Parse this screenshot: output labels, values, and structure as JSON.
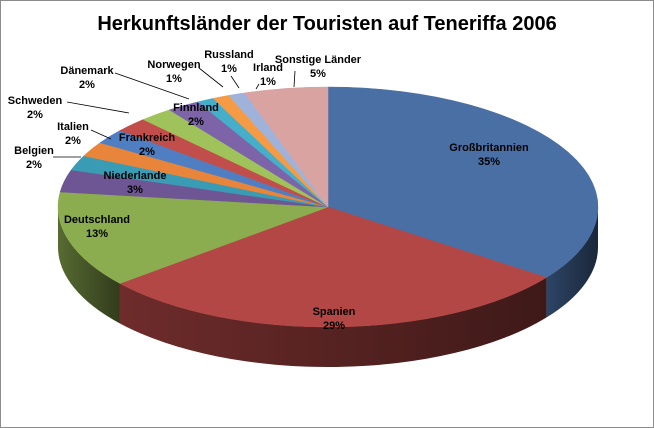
{
  "chart_data": {
    "type": "pie",
    "title": "Herkunftsländer der Touristen auf Teneriffa 2006",
    "slices": [
      {
        "label": "Großbritannien",
        "pct_label": "35%",
        "value": 35,
        "color": "#4a6fa5",
        "label_pos": "inside"
      },
      {
        "label": "Spanien",
        "pct_label": "29%",
        "value": 29,
        "color": "#b24745",
        "label_pos": "inside"
      },
      {
        "label": "Deutschland",
        "pct_label": "13%",
        "value": 13,
        "color": "#8cac50",
        "label_pos": "inside"
      },
      {
        "label": "Niederlande",
        "pct_label": "3%",
        "value": 3,
        "color": "#6e5594",
        "label_pos": "inside"
      },
      {
        "label": "Belgien",
        "pct_label": "2%",
        "value": 2,
        "color": "#3a9bb4",
        "label_pos": "outside"
      },
      {
        "label": "Frankreich",
        "pct_label": "2%",
        "value": 2,
        "color": "#e8853a",
        "label_pos": "inside"
      },
      {
        "label": "Italien",
        "pct_label": "2%",
        "value": 2,
        "color": "#4f7fc2",
        "label_pos": "outside"
      },
      {
        "label": "Schweden",
        "pct_label": "2%",
        "value": 2,
        "color": "#c24e4c",
        "label_pos": "outside"
      },
      {
        "label": "Finnland",
        "pct_label": "2%",
        "value": 2,
        "color": "#9fc35a",
        "label_pos": "inside"
      },
      {
        "label": "Dänemark",
        "pct_label": "2%",
        "value": 2,
        "color": "#7d64a8",
        "label_pos": "outside"
      },
      {
        "label": "Norwegen",
        "pct_label": "1%",
        "value": 1,
        "color": "#45aec8",
        "label_pos": "outside"
      },
      {
        "label": "Russland",
        "pct_label": "1%",
        "value": 1,
        "color": "#f59a45",
        "label_pos": "outside"
      },
      {
        "label": "Irland",
        "pct_label": "1%",
        "value": 1,
        "color": "#9fb3da",
        "label_pos": "outside"
      },
      {
        "label": "Sonstige Länder",
        "pct_label": "5%",
        "value": 5,
        "color": "#d9a3a2",
        "label_pos": "outside"
      }
    ],
    "legend": "none",
    "style": "3d-pie"
  }
}
